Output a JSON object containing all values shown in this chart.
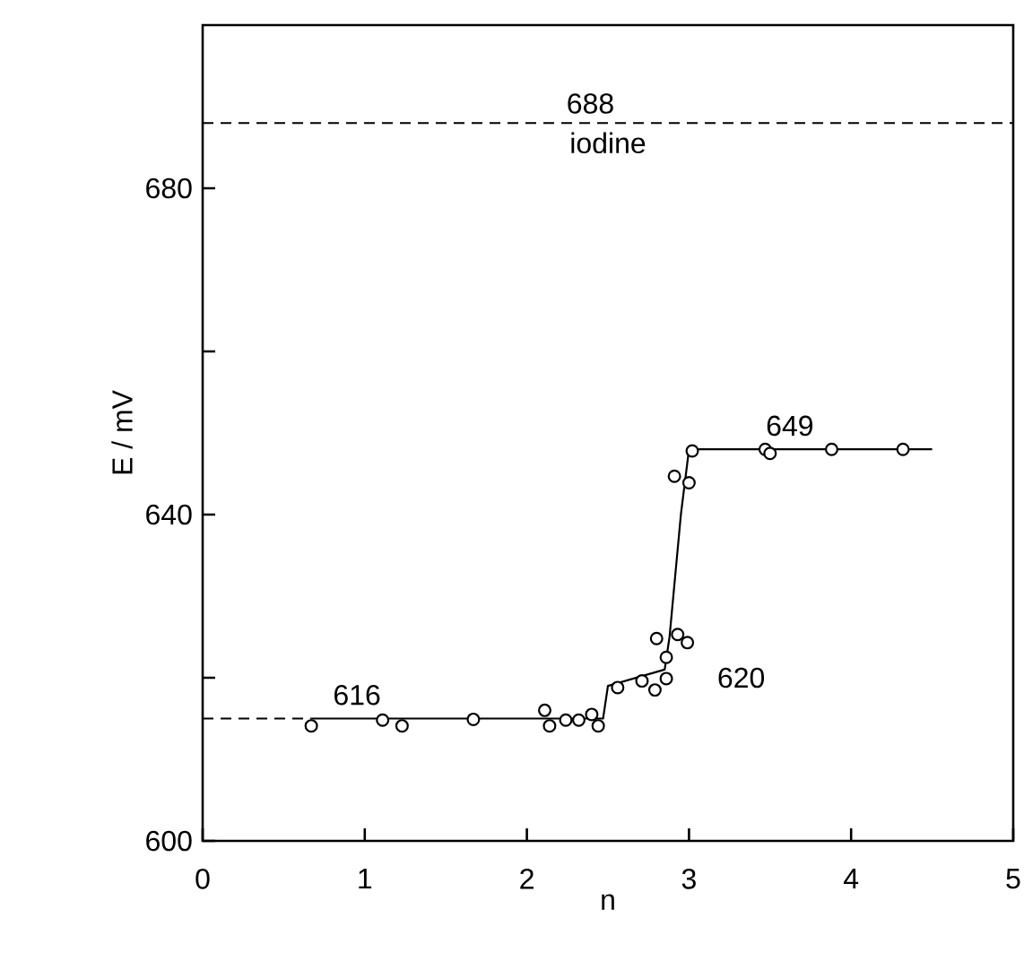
{
  "chart_data": {
    "type": "scatter",
    "xlabel": "n",
    "ylabel": "E / mV",
    "xlim": [
      0,
      5
    ],
    "ylim": [
      600,
      700
    ],
    "xticks": [
      0,
      1,
      2,
      3,
      4,
      5
    ],
    "yticks": [
      600,
      {
        "value": 620,
        "label": null
      },
      640,
      {
        "value": 660,
        "label": null
      },
      680
    ],
    "grid": false,
    "series": [
      {
        "type": "scatter",
        "marker": "circle",
        "color": "#000000",
        "x": [
          0.67,
          1.11,
          1.23,
          1.67,
          2.11,
          2.14,
          2.24,
          2.32,
          2.4,
          2.44,
          2.56,
          2.71,
          2.79,
          2.86,
          2.86,
          2.8,
          2.93,
          2.99,
          2.91,
          3.0,
          3.02,
          3.47,
          3.5,
          3.88,
          4.32
        ],
        "values": [
          614.1,
          614.8,
          614.1,
          614.9,
          616.0,
          614.1,
          614.8,
          614.8,
          615.5,
          614.1,
          618.8,
          619.6,
          618.5,
          619.9,
          622.5,
          624.8,
          625.3,
          624.3,
          644.7,
          643.9,
          647.8,
          648.0,
          647.5,
          648.0,
          648.0
        ]
      },
      {
        "type": "line",
        "marker": "none",
        "line_style": "solid",
        "color": "#000000",
        "x": [
          0.67,
          2.47,
          2.5,
          2.85,
          2.88,
          2.95,
          3.0,
          4.5
        ],
        "values": [
          615,
          615,
          619,
          621,
          625,
          640,
          648,
          648
        ]
      },
      {
        "type": "line",
        "marker": "none",
        "line_style": "dashed",
        "color": "#000000",
        "x": [
          0,
          0.67
        ],
        "values": [
          615,
          615
        ]
      }
    ],
    "ref_lines": [
      {
        "axis": "y",
        "value": 688,
        "label": "iodine",
        "line_style": "dashed",
        "color": "#000000"
      }
    ],
    "annotations": [
      {
        "text": "688",
        "x": 2.22,
        "y": 688
      },
      {
        "text": "616",
        "x": 0.78,
        "y": 615.5
      },
      "620",
      {
        "text": "649",
        "x": 3.45,
        "y": 648.5
      }
    ]
  }
}
